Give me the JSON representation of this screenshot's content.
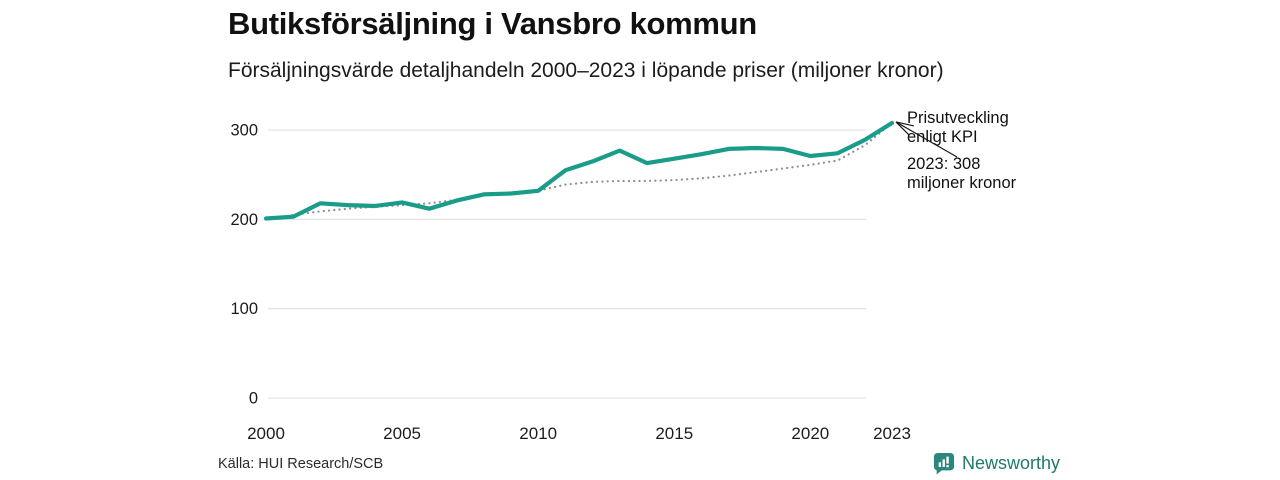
{
  "header": {
    "title": "Butiksförsäljning i Vansbro kommun",
    "subtitle": "Försäljningsvärde detaljhandeln 2000–2023 i löpande priser (miljoner kronor)"
  },
  "chart_data": {
    "type": "line",
    "x": [
      2000,
      2001,
      2002,
      2003,
      2004,
      2005,
      2006,
      2007,
      2008,
      2009,
      2010,
      2011,
      2012,
      2013,
      2014,
      2015,
      2016,
      2017,
      2018,
      2019,
      2020,
      2021,
      2022,
      2023
    ],
    "series": [
      {
        "name": "Försäljningsvärde detaljhandeln, löpande priser",
        "style": "solid",
        "color": "#1a9c8b",
        "values": [
          201,
          203,
          218,
          216,
          215,
          219,
          212,
          221,
          228,
          229,
          232,
          255,
          265,
          277,
          263,
          268,
          273,
          279,
          280,
          279,
          271,
          274,
          289,
          308
        ]
      },
      {
        "name": "Prisutveckling enligt KPI",
        "style": "dotted",
        "color": "#8f8f8f",
        "values": [
          200,
          205,
          209,
          212,
          214,
          216,
          218,
          222,
          229,
          229,
          232,
          239,
          242,
          243,
          243,
          244,
          246,
          249,
          253,
          257,
          261,
          266,
          283,
          308
        ]
      }
    ],
    "xticks": [
      2000,
      2005,
      2010,
      2015,
      2020,
      2023
    ],
    "yticks": [
      0,
      100,
      200,
      300
    ],
    "ylim": [
      0,
      320
    ],
    "xlabel": "",
    "ylabel": "",
    "grid": "horizontal",
    "legend": "none",
    "grid_color": "#e3e3e3",
    "tick_color": "#1c1c1c"
  },
  "annotation": {
    "kpi_label": "Prisutveckling enligt KPI",
    "value_label": "2023: 308 miljoner kronor"
  },
  "footer": {
    "source": "Källa: HUI Research/SCB",
    "brand": "Newsworthy",
    "brand_color": "#20796d",
    "icon_color": "#2b877b"
  }
}
